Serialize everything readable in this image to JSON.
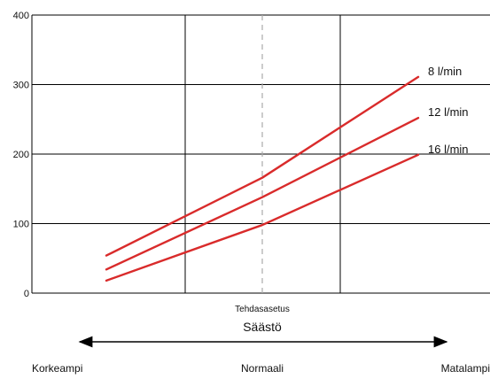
{
  "chart_data": {
    "type": "line",
    "ylim": [
      0,
      400
    ],
    "y_ticks": [
      "0",
      "100",
      "200",
      "300",
      "400"
    ],
    "grid": true,
    "x": [
      0,
      1,
      2
    ],
    "series": [
      {
        "name": "8 l/min",
        "x": [
          0,
          1,
          2
        ],
        "values": [
          54,
          166,
          311
        ]
      },
      {
        "name": "12 l/min",
        "x": [
          0,
          1,
          2
        ],
        "values": [
          34,
          138,
          252
        ]
      },
      {
        "name": "16 l/min",
        "x": [
          0,
          1,
          2
        ],
        "values": [
          18,
          98,
          199
        ]
      }
    ],
    "annotations": {
      "factory_setting": "Tehdasasetus",
      "saving": "Säästö"
    },
    "bottom_labels": [
      "Korkeampi",
      "Normaali",
      "Matalampi"
    ]
  },
  "colors": {
    "series": "#d92b2b",
    "axis": "#000000",
    "dashed": "#aaaaaa"
  }
}
